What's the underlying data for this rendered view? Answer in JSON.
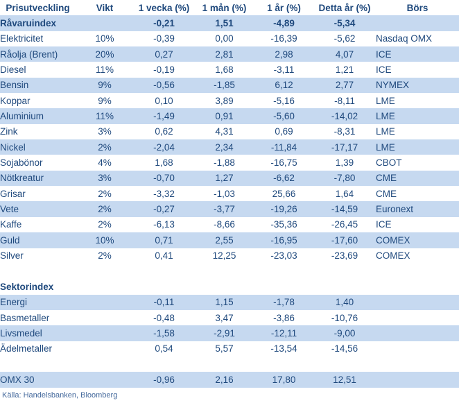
{
  "chart_data": {
    "type": "table",
    "title": "Prisutveckling",
    "columns": [
      "Prisutveckling",
      "Vikt",
      "1 vecka (%)",
      "1 mån (%)",
      "1 år (%)",
      "Detta år (%)",
      "Börs"
    ],
    "rows": [
      {
        "type": "data",
        "bold": true,
        "shaded": true,
        "name": "Råvaruindex",
        "vikt": "",
        "w1": "-0,21",
        "m1": "1,51",
        "y1": "-4,89",
        "ytd": "-5,34",
        "bors": ""
      },
      {
        "type": "data",
        "bold": false,
        "shaded": false,
        "name": "Elektricitet",
        "vikt": "10%",
        "w1": "-0,39",
        "m1": "0,00",
        "y1": "-16,39",
        "ytd": "-5,62",
        "bors": "Nasdaq OMX"
      },
      {
        "type": "data",
        "bold": false,
        "shaded": true,
        "name": "Råolja (Brent)",
        "vikt": "20%",
        "w1": "0,27",
        "m1": "2,81",
        "y1": "2,98",
        "ytd": "4,07",
        "bors": "ICE"
      },
      {
        "type": "data",
        "bold": false,
        "shaded": false,
        "name": "Diesel",
        "vikt": "11%",
        "w1": "-0,19",
        "m1": "1,68",
        "y1": "-3,11",
        "ytd": "1,21",
        "bors": "ICE"
      },
      {
        "type": "data",
        "bold": false,
        "shaded": true,
        "name": "Bensin",
        "vikt": "9%",
        "w1": "-0,56",
        "m1": "-1,85",
        "y1": "6,12",
        "ytd": "2,77",
        "bors": "NYMEX"
      },
      {
        "type": "data",
        "bold": false,
        "shaded": false,
        "name": "Koppar",
        "vikt": "9%",
        "w1": "0,10",
        "m1": "3,89",
        "y1": "-5,16",
        "ytd": "-8,11",
        "bors": "LME"
      },
      {
        "type": "data",
        "bold": false,
        "shaded": true,
        "name": "Aluminium",
        "vikt": "11%",
        "w1": "-1,49",
        "m1": "0,91",
        "y1": "-5,60",
        "ytd": "-14,02",
        "bors": "LME"
      },
      {
        "type": "data",
        "bold": false,
        "shaded": false,
        "name": "Zink",
        "vikt": "3%",
        "w1": "0,62",
        "m1": "4,31",
        "y1": "0,69",
        "ytd": "-8,31",
        "bors": "LME"
      },
      {
        "type": "data",
        "bold": false,
        "shaded": true,
        "name": "Nickel",
        "vikt": "2%",
        "w1": "-2,04",
        "m1": "2,34",
        "y1": "-11,84",
        "ytd": "-17,17",
        "bors": "LME"
      },
      {
        "type": "data",
        "bold": false,
        "shaded": false,
        "name": "Sojabönor",
        "vikt": "4%",
        "w1": "1,68",
        "m1": "-1,88",
        "y1": "-16,75",
        "ytd": "1,39",
        "bors": "CBOT"
      },
      {
        "type": "data",
        "bold": false,
        "shaded": true,
        "name": "Nötkreatur",
        "vikt": "3%",
        "w1": "-0,70",
        "m1": "1,27",
        "y1": "-6,62",
        "ytd": "-7,80",
        "bors": "CME"
      },
      {
        "type": "data",
        "bold": false,
        "shaded": false,
        "name": "Grisar",
        "vikt": "2%",
        "w1": "-3,32",
        "m1": "-1,03",
        "y1": "25,66",
        "ytd": "1,64",
        "bors": "CME"
      },
      {
        "type": "data",
        "bold": false,
        "shaded": true,
        "name": "Vete",
        "vikt": "2%",
        "w1": "-0,27",
        "m1": "-3,77",
        "y1": "-19,26",
        "ytd": "-14,59",
        "bors": "Euronext"
      },
      {
        "type": "data",
        "bold": false,
        "shaded": false,
        "name": "Kaffe",
        "vikt": "2%",
        "w1": "-6,13",
        "m1": "-8,66",
        "y1": "-35,36",
        "ytd": "-26,45",
        "bors": "ICE"
      },
      {
        "type": "data",
        "bold": false,
        "shaded": true,
        "name": "Guld",
        "vikt": "10%",
        "w1": "0,71",
        "m1": "2,55",
        "y1": "-16,95",
        "ytd": "-17,60",
        "bors": "COMEX"
      },
      {
        "type": "data",
        "bold": false,
        "shaded": false,
        "name": "Silver",
        "vikt": "2%",
        "w1": "0,41",
        "m1": "12,25",
        "y1": "-23,03",
        "ytd": "-23,69",
        "bors": "COMEX"
      },
      {
        "type": "spacer"
      },
      {
        "type": "section",
        "name": "Sektorindex"
      },
      {
        "type": "data",
        "bold": false,
        "shaded": true,
        "name": "Energi",
        "vikt": "",
        "w1": "-0,11",
        "m1": "1,15",
        "y1": "-1,78",
        "ytd": "1,40",
        "bors": ""
      },
      {
        "type": "data",
        "bold": false,
        "shaded": false,
        "name": "Basmetaller",
        "vikt": "",
        "w1": "-0,48",
        "m1": "3,47",
        "y1": "-3,86",
        "ytd": "-10,76",
        "bors": ""
      },
      {
        "type": "data",
        "bold": false,
        "shaded": true,
        "name": "Livsmedel",
        "vikt": "",
        "w1": "-1,58",
        "m1": "-2,91",
        "y1": "-12,11",
        "ytd": "-9,00",
        "bors": ""
      },
      {
        "type": "data",
        "bold": false,
        "shaded": false,
        "name": "Ädelmetaller",
        "vikt": "",
        "w1": "0,54",
        "m1": "5,57",
        "y1": "-13,54",
        "ytd": "-14,56",
        "bors": ""
      },
      {
        "type": "spacer"
      },
      {
        "type": "data",
        "bold": false,
        "shaded": true,
        "name": "OMX 30",
        "vikt": "",
        "w1": "-0,96",
        "m1": "2,16",
        "y1": "17,80",
        "ytd": "12,51",
        "bors": ""
      }
    ],
    "source": "Källa: Handelsbanken, Bloomberg",
    "layout_hints": {
      "grid": false,
      "legend": "none",
      "shaded_row_style": "alternating"
    }
  },
  "colors": {
    "positive_text": "#1F497D",
    "negative_text": "#FF0000",
    "row_shade": "#C6D9F0",
    "header_text": "#1F497D",
    "source_text": "#44699C"
  }
}
